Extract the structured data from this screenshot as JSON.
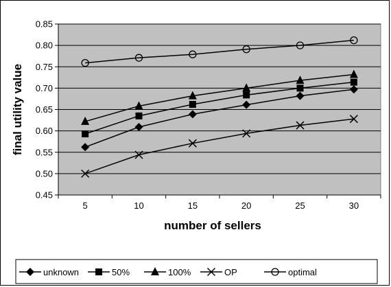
{
  "chart_data": {
    "type": "line",
    "xlabel": "number of sellers",
    "ylabel": "final utility value",
    "x": [
      5,
      10,
      15,
      20,
      25,
      30
    ],
    "x_tick_labels": [
      "5",
      "10",
      "15",
      "20",
      "25",
      "30"
    ],
    "ylim": [
      0.45,
      0.85
    ],
    "y_tick_labels": [
      "0.45",
      "0.50",
      "0.55",
      "0.60",
      "0.65",
      "0.70",
      "0.75",
      "0.80",
      "0.85"
    ],
    "grid": true,
    "plot_background": "#c0c0c0",
    "legend_position": "bottom",
    "series": [
      {
        "name": "unknown",
        "marker": "diamond",
        "values": [
          0.562,
          0.609,
          0.639,
          0.661,
          0.682,
          0.697
        ]
      },
      {
        "name": "50%",
        "marker": "square",
        "values": [
          0.593,
          0.635,
          0.662,
          0.684,
          0.7,
          0.714
        ]
      },
      {
        "name": "100%",
        "marker": "triangle",
        "values": [
          0.622,
          0.658,
          0.682,
          0.7,
          0.718,
          0.732
        ]
      },
      {
        "name": "OP",
        "marker": "x",
        "values": [
          0.5,
          0.544,
          0.571,
          0.594,
          0.613,
          0.628
        ]
      },
      {
        "name": "optimal",
        "marker": "circle",
        "values": [
          0.759,
          0.771,
          0.779,
          0.791,
          0.8,
          0.812
        ]
      }
    ]
  }
}
